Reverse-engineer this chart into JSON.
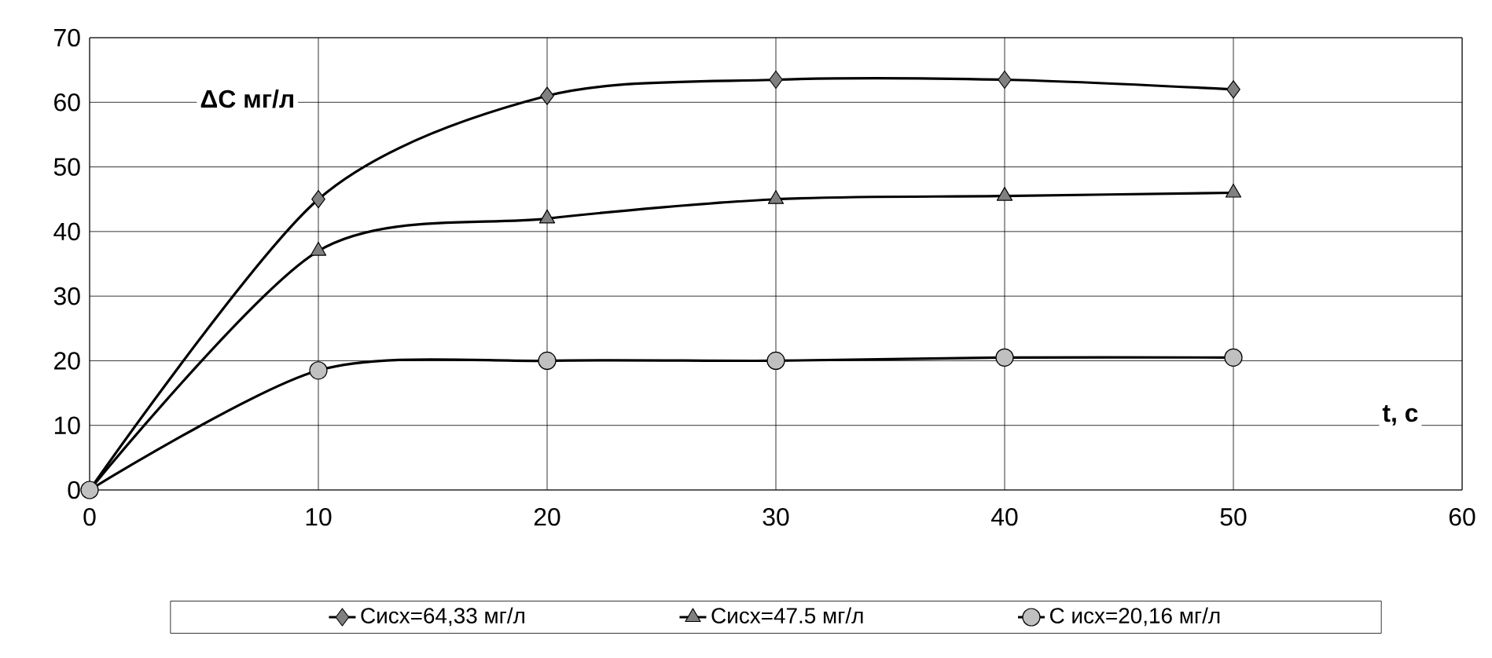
{
  "chart_data": {
    "type": "line",
    "xlabel": "t, c",
    "ylabel": "ΔC мг/л",
    "x": [
      0,
      10,
      20,
      30,
      40,
      50
    ],
    "series": [
      {
        "name": "Сисх=64,33 мг/л",
        "color": "#808080",
        "marker": "diamond",
        "values": [
          0,
          45,
          61,
          63.5,
          63.5,
          62
        ]
      },
      {
        "name": "Сисх=47.5 мг/л",
        "color": "#808080",
        "marker": "triangle",
        "values": [
          0,
          37,
          42,
          45,
          45.5,
          46
        ]
      },
      {
        "name": "С исх=20,16 мг/л",
        "color": "#c0c0c0",
        "marker": "circle",
        "values": [
          0,
          18.5,
          20,
          20,
          20.5,
          20.5
        ]
      }
    ],
    "xlim": [
      0,
      60
    ],
    "ylim": [
      0,
      70
    ],
    "xticks": [
      0,
      10,
      20,
      30,
      40,
      50,
      60
    ],
    "yticks": [
      0,
      10,
      20,
      30,
      40,
      50,
      60,
      70
    ],
    "grid": true,
    "legend": "bottom",
    "line_style": "solid"
  }
}
